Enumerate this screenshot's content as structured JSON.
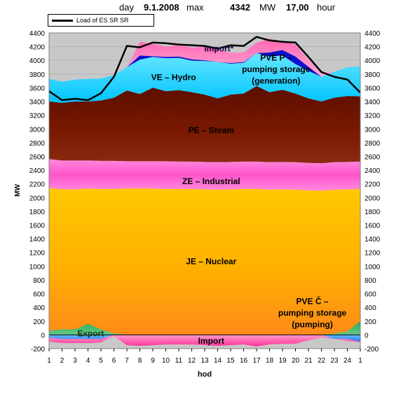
{
  "header": {
    "day_label": "day",
    "date": "9.1.2008",
    "max_label": "max",
    "max_value": "4342",
    "unit": "MW",
    "time": "17,00",
    "hour_label": "hour"
  },
  "legend": {
    "load_line": "Load of ES SR SR"
  },
  "axes": {
    "y_label": "MW",
    "x_label": "hod",
    "y_ticks": [
      "-200",
      "0",
      "200",
      "400",
      "600",
      "800",
      "1000",
      "1200",
      "1400",
      "1600",
      "1800",
      "2000",
      "2200",
      "2400",
      "2600",
      "2800",
      "3000",
      "3200",
      "3400",
      "3600",
      "3800",
      "4000",
      "4200",
      "4400"
    ],
    "x_ticks": [
      "1",
      "2",
      "3",
      "4",
      "5",
      "6",
      "7",
      "8",
      "9",
      "10",
      "11",
      "12",
      "13",
      "14",
      "15",
      "16",
      "17",
      "18",
      "19",
      "20",
      "21",
      "22",
      "23",
      "24",
      "1"
    ]
  },
  "area_labels": {
    "import_top": "Import*",
    "pve_gen_1": "PVE P –",
    "pve_gen_2": "pumping storage",
    "pve_gen_3": "(generation)",
    "hydro": "VE – Hydro",
    "steam": "PE – Steam",
    "industrial": "ZE – Industrial",
    "nuclear": "JE – Nuclear",
    "pve_pump_1": "PVE Č –",
    "pve_pump_2": "pumping storage",
    "pve_pump_3": "(pumping)",
    "export": "Export",
    "import_bottom": "Import"
  },
  "chart_data": {
    "type": "area",
    "x": [
      "1",
      "2",
      "3",
      "4",
      "5",
      "6",
      "7",
      "8",
      "9",
      "10",
      "11",
      "12",
      "13",
      "14",
      "15",
      "16",
      "17",
      "18",
      "19",
      "20",
      "21",
      "22",
      "23",
      "24",
      "1"
    ],
    "ylim": [
      -200,
      4400
    ],
    "xlabel": "hod",
    "ylabel": "MW",
    "grid": true,
    "legend_position": "top-left",
    "colors": {
      "nuclear_top": "#FFC000",
      "nuclear_bottom": "#FF8C1A",
      "industrial": "#FF66CC",
      "steam": "#7A1A00",
      "hydro": "#00CCFF",
      "pve_generation": "#0000CC",
      "import_top": "#FF99CC",
      "import_bottom": "#FF66B2",
      "export": "#33AA55",
      "pve_pumping": "#3399FF",
      "load_line": "#000000"
    },
    "series": [
      {
        "name": "JE – Nuclear",
        "values": [
          2140,
          2120,
          2120,
          2130,
          2125,
          2125,
          2130,
          2135,
          2130,
          2125,
          2125,
          2125,
          2120,
          2115,
          2120,
          2125,
          2125,
          2115,
          2120,
          2115,
          2105,
          2100,
          2115,
          2120,
          2125
        ]
      },
      {
        "name": "ZE – Industrial",
        "values": [
          420,
          420,
          420,
          410,
          410,
          410,
          400,
          395,
          400,
          405,
          400,
          400,
          400,
          400,
          400,
          400,
          400,
          400,
          400,
          400,
          400,
          400,
          400,
          400,
          400
        ]
      },
      {
        "name": "PE – Steam",
        "values": [
          840,
          840,
          860,
          860,
          880,
          920,
          1030,
          980,
          1070,
          1020,
          1040,
          1010,
          980,
          930,
          980,
          990,
          1100,
          1020,
          1050,
          1000,
          940,
          900,
          940,
          960,
          950
        ]
      },
      {
        "name": "VE – Hydro",
        "values": [
          330,
          310,
          320,
          330,
          320,
          330,
          340,
          500,
          450,
          480,
          470,
          460,
          490,
          530,
          450,
          450,
          480,
          520,
          500,
          430,
          400,
          360,
          380,
          420,
          440
        ]
      },
      {
        "name": "PVE P – pumping storage (generation)",
        "values": [
          0,
          0,
          0,
          0,
          0,
          0,
          0,
          60,
          10,
          20,
          20,
          20,
          10,
          0,
          10,
          10,
          0,
          60,
          80,
          110,
          60,
          0,
          0,
          0,
          0
        ]
      },
      {
        "name": "Import*",
        "values": [
          0,
          0,
          0,
          0,
          0,
          0,
          0,
          200,
          180,
          150,
          170,
          170,
          200,
          180,
          150,
          140,
          150,
          200,
          130,
          180,
          110,
          70,
          0,
          0,
          0
        ]
      },
      {
        "name": "Export",
        "values": [
          60,
          80,
          80,
          160,
          80,
          20,
          0,
          0,
          0,
          0,
          0,
          0,
          0,
          0,
          0,
          0,
          0,
          0,
          0,
          0,
          0,
          0,
          20,
          50,
          200
        ]
      },
      {
        "name": "Import",
        "values": [
          -100,
          -120,
          -120,
          -120,
          -110,
          -20,
          -150,
          -160,
          -150,
          -140,
          -140,
          -140,
          -150,
          -160,
          -150,
          -140,
          -170,
          -140,
          -130,
          -130,
          -80,
          -40,
          -40,
          -90,
          -110
        ]
      },
      {
        "name": "PVE Č – pumping storage (pumping)",
        "values": [
          -40,
          -60,
          -60,
          -60,
          -60,
          0,
          0,
          0,
          0,
          0,
          0,
          0,
          0,
          0,
          0,
          0,
          0,
          0,
          0,
          0,
          0,
          0,
          -60,
          -60,
          -100
        ]
      },
      {
        "name": "Load of ES SR SR",
        "values": [
          3550,
          3420,
          3440,
          3420,
          3520,
          3760,
          4210,
          4190,
          4260,
          4250,
          4230,
          4220,
          4210,
          4170,
          4220,
          4210,
          4342,
          4290,
          4270,
          4260,
          4050,
          3830,
          3760,
          3720,
          3530
        ]
      }
    ]
  }
}
